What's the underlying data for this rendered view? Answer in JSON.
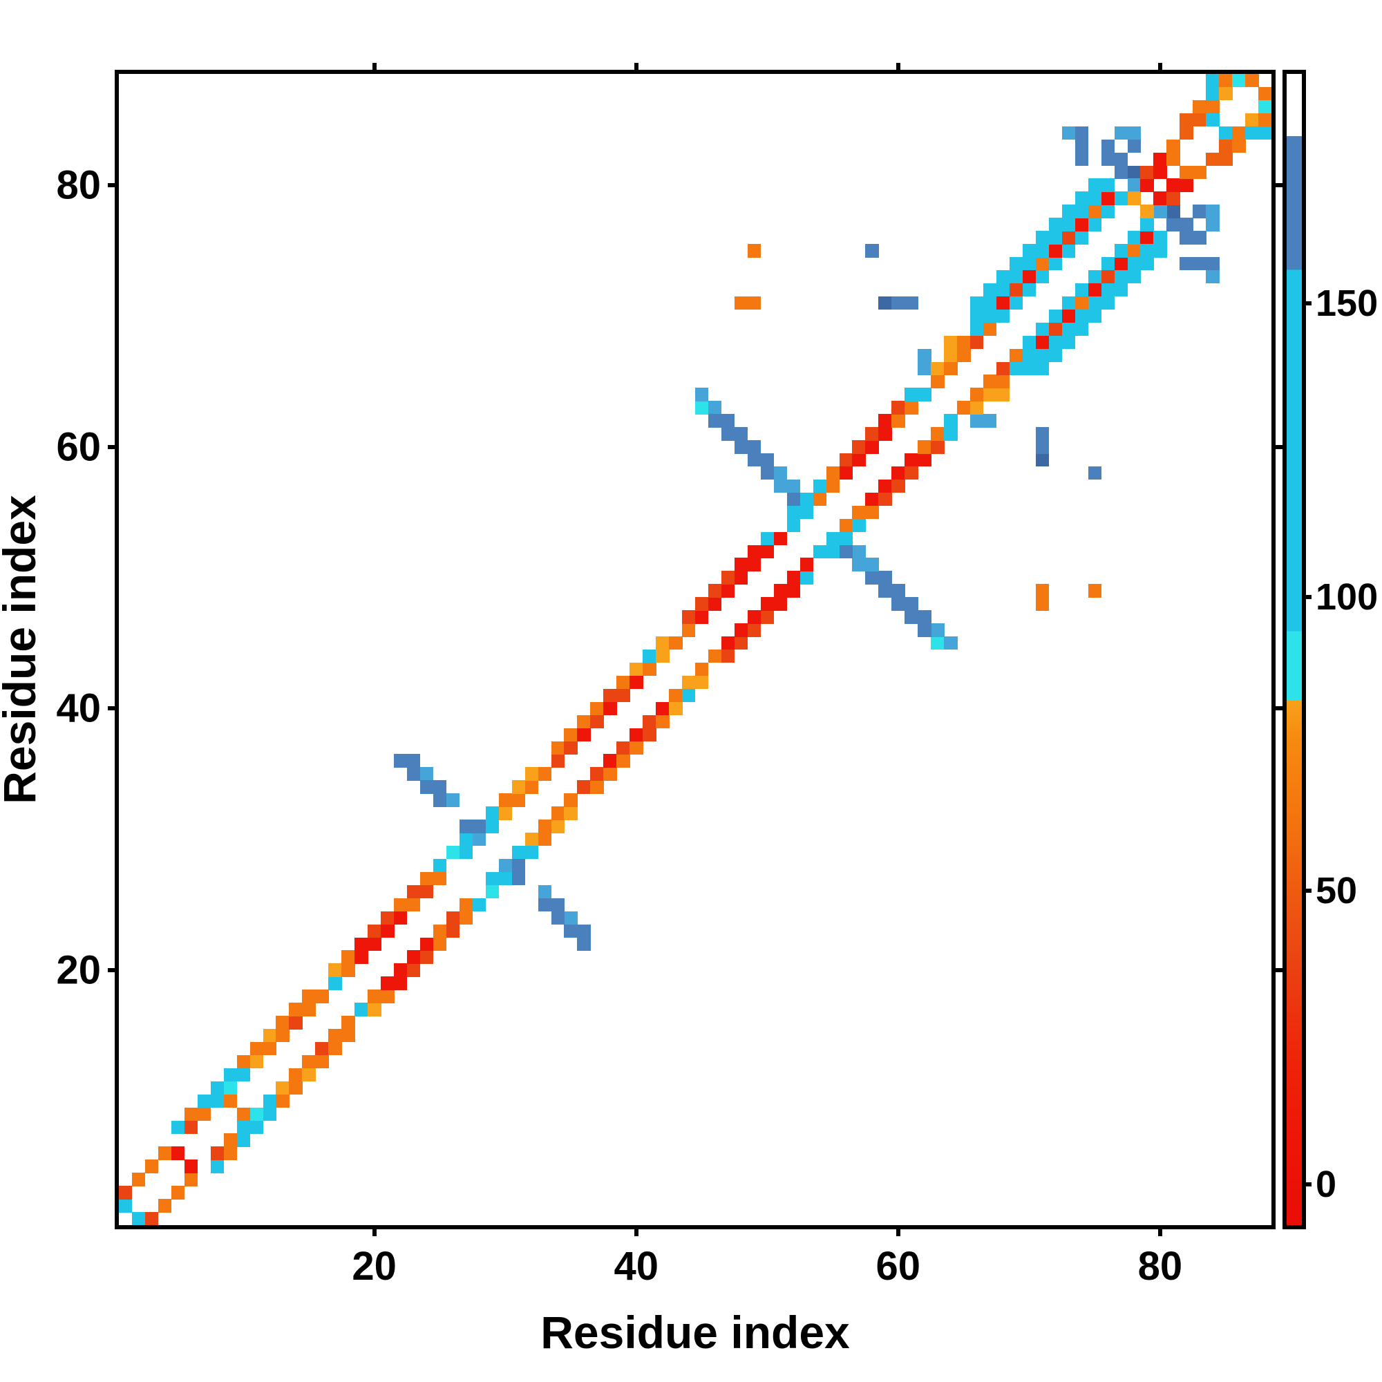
{
  "chart_data": {
    "type": "heatmap",
    "title": "",
    "xlabel": "Residue index",
    "ylabel": "Residue index",
    "x_range": [
      1,
      88
    ],
    "y_range": [
      1,
      88
    ],
    "x_ticks": [
      20,
      40,
      60,
      80
    ],
    "y_ticks": [
      20,
      40,
      60,
      80
    ],
    "grid": false,
    "symmetric": true,
    "background_value_color": "#ffffff",
    "colorbar": {
      "position": "right",
      "ticks": [
        0,
        50,
        100,
        150
      ],
      "value_range": [
        -7,
        189
      ],
      "gradient_stops": [
        {
          "pos": 0.0,
          "color": "#ffffff"
        },
        {
          "pos": 0.054,
          "color": "#ffffff"
        },
        {
          "pos": 0.0541,
          "color": "#4a81bc"
        },
        {
          "pos": 0.17,
          "color": "#4a81bc"
        },
        {
          "pos": 0.1701,
          "color": "#1fc4e6"
        },
        {
          "pos": 0.484,
          "color": "#1fc4e6"
        },
        {
          "pos": 0.4841,
          "color": "#2ee2ea"
        },
        {
          "pos": 0.544,
          "color": "#2ee2ea"
        },
        {
          "pos": 0.5441,
          "color": "#f9a11b"
        },
        {
          "pos": 0.58,
          "color": "#f6890f"
        },
        {
          "pos": 0.64,
          "color": "#f4770f"
        },
        {
          "pos": 0.7,
          "color": "#ef5f10"
        },
        {
          "pos": 0.77,
          "color": "#ea4412"
        },
        {
          "pos": 0.85,
          "color": "#ee2609"
        },
        {
          "pos": 0.92,
          "color": "#ee1608"
        },
        {
          "pos": 1.0,
          "color": "#e90d06"
        }
      ]
    },
    "palette": {
      "R": {
        "value": 3,
        "color": "#ee1608"
      },
      "RO": {
        "value": 25,
        "color": "#ea4412"
      },
      "DO": {
        "value": 38,
        "color": "#ef5f10"
      },
      "O": {
        "value": 48,
        "color": "#f4770f"
      },
      "A": {
        "value": 72,
        "color": "#f9a11b"
      },
      "Cb": {
        "value": 88,
        "color": "#2ee2ea"
      },
      "C": {
        "value": 110,
        "color": "#1fc4e6"
      },
      "LB": {
        "value": 148,
        "color": "#45a5d8"
      },
      "SB": {
        "value": 163,
        "color": "#4a81bc"
      },
      "SBd": {
        "value": 172,
        "color": "#3c69a4"
      }
    },
    "cells": [
      [
        1,
        2,
        "C"
      ],
      [
        1,
        3,
        "RO"
      ],
      [
        2,
        4,
        "O"
      ],
      [
        3,
        5,
        "O"
      ],
      [
        4,
        6,
        "O"
      ],
      [
        5,
        6,
        "R"
      ],
      [
        5,
        8,
        "C"
      ],
      [
        6,
        8,
        "RO"
      ],
      [
        6,
        9,
        "O"
      ],
      [
        7,
        9,
        "O"
      ],
      [
        7,
        10,
        "C"
      ],
      [
        8,
        10,
        "C"
      ],
      [
        8,
        11,
        "C"
      ],
      [
        9,
        10,
        "O"
      ],
      [
        9,
        11,
        "Cb"
      ],
      [
        9,
        12,
        "C"
      ],
      [
        10,
        12,
        "C"
      ],
      [
        10,
        13,
        "O"
      ],
      [
        11,
        13,
        "A"
      ],
      [
        11,
        14,
        "O"
      ],
      [
        12,
        14,
        "O"
      ],
      [
        12,
        15,
        "A"
      ],
      [
        13,
        15,
        "O"
      ],
      [
        13,
        16,
        "O"
      ],
      [
        14,
        16,
        "RO"
      ],
      [
        14,
        17,
        "O"
      ],
      [
        15,
        17,
        "O"
      ],
      [
        15,
        18,
        "O"
      ],
      [
        16,
        18,
        "O"
      ],
      [
        17,
        19,
        "C"
      ],
      [
        17,
        20,
        "A"
      ],
      [
        18,
        20,
        "O"
      ],
      [
        18,
        21,
        "O"
      ],
      [
        19,
        21,
        "R"
      ],
      [
        19,
        22,
        "R"
      ],
      [
        20,
        22,
        "R"
      ],
      [
        20,
        23,
        "RO"
      ],
      [
        21,
        23,
        "R"
      ],
      [
        21,
        24,
        "RO"
      ],
      [
        22,
        24,
        "R"
      ],
      [
        22,
        25,
        "O"
      ],
      [
        23,
        25,
        "O"
      ],
      [
        23,
        26,
        "RO"
      ],
      [
        24,
        26,
        "RO"
      ],
      [
        24,
        27,
        "O"
      ],
      [
        25,
        27,
        "O"
      ],
      [
        25,
        28,
        "C"
      ],
      [
        26,
        29,
        "Cb"
      ],
      [
        27,
        29,
        "C"
      ],
      [
        27,
        30,
        "C"
      ],
      [
        28,
        30,
        "LB"
      ],
      [
        27,
        31,
        "SB"
      ],
      [
        28,
        31,
        "SB"
      ],
      [
        29,
        31,
        "C"
      ],
      [
        29,
        32,
        "C"
      ],
      [
        30,
        32,
        "A"
      ],
      [
        30,
        33,
        "O"
      ],
      [
        31,
        33,
        "O"
      ],
      [
        31,
        34,
        "A"
      ],
      [
        22,
        36,
        "SB"
      ],
      [
        23,
        36,
        "SB"
      ],
      [
        23,
        35,
        "SB"
      ],
      [
        24,
        35,
        "LB"
      ],
      [
        24,
        34,
        "SB"
      ],
      [
        25,
        34,
        "SB"
      ],
      [
        25,
        33,
        "SB"
      ],
      [
        26,
        33,
        "LB"
      ],
      [
        32,
        34,
        "O"
      ],
      [
        32,
        35,
        "A"
      ],
      [
        33,
        35,
        "O"
      ],
      [
        34,
        36,
        "RO"
      ],
      [
        34,
        37,
        "O"
      ],
      [
        35,
        37,
        "RO"
      ],
      [
        35,
        38,
        "O"
      ],
      [
        36,
        38,
        "R"
      ],
      [
        36,
        39,
        "O"
      ],
      [
        37,
        39,
        "RO"
      ],
      [
        37,
        40,
        "O"
      ],
      [
        38,
        40,
        "R"
      ],
      [
        38,
        41,
        "RO"
      ],
      [
        39,
        41,
        "RO"
      ],
      [
        39,
        42,
        "O"
      ],
      [
        40,
        42,
        "R"
      ],
      [
        40,
        43,
        "A"
      ],
      [
        41,
        43,
        "O"
      ],
      [
        41,
        44,
        "C"
      ],
      [
        42,
        44,
        "A"
      ],
      [
        42,
        45,
        "A"
      ],
      [
        43,
        45,
        "O"
      ],
      [
        44,
        46,
        "O"
      ],
      [
        44,
        47,
        "RO"
      ],
      [
        45,
        47,
        "R"
      ],
      [
        45,
        48,
        "RO"
      ],
      [
        46,
        48,
        "R"
      ],
      [
        46,
        49,
        "RO"
      ],
      [
        47,
        49,
        "R"
      ],
      [
        47,
        50,
        "RO"
      ],
      [
        48,
        50,
        "R"
      ],
      [
        48,
        51,
        "R"
      ],
      [
        49,
        51,
        "R"
      ],
      [
        49,
        52,
        "R"
      ],
      [
        50,
        52,
        "R"
      ],
      [
        50,
        53,
        "C"
      ],
      [
        51,
        53,
        "R"
      ],
      [
        52,
        54,
        "C"
      ],
      [
        52,
        55,
        "C"
      ],
      [
        53,
        55,
        "C"
      ],
      [
        53,
        56,
        "C"
      ],
      [
        54,
        56,
        "O"
      ],
      [
        54,
        57,
        "C"
      ],
      [
        55,
        57,
        "O"
      ],
      [
        55,
        58,
        "O"
      ],
      [
        45,
        63,
        "Cb"
      ],
      [
        46,
        63,
        "LB"
      ],
      [
        45,
        64,
        "LB"
      ],
      [
        46,
        62,
        "SB"
      ],
      [
        47,
        62,
        "SB"
      ],
      [
        47,
        61,
        "SB"
      ],
      [
        48,
        61,
        "SB"
      ],
      [
        48,
        60,
        "SB"
      ],
      [
        49,
        60,
        "SB"
      ],
      [
        49,
        59,
        "SB"
      ],
      [
        50,
        59,
        "SB"
      ],
      [
        50,
        58,
        "SB"
      ],
      [
        51,
        58,
        "LB"
      ],
      [
        51,
        57,
        "LB"
      ],
      [
        52,
        57,
        "LB"
      ],
      [
        52,
        56,
        "SB"
      ],
      [
        56,
        58,
        "R"
      ],
      [
        56,
        59,
        "RO"
      ],
      [
        57,
        59,
        "R"
      ],
      [
        57,
        60,
        "RO"
      ],
      [
        58,
        60,
        "R"
      ],
      [
        58,
        61,
        "RO"
      ],
      [
        59,
        61,
        "R"
      ],
      [
        59,
        62,
        "R"
      ],
      [
        60,
        62,
        "O"
      ],
      [
        60,
        63,
        "RO"
      ],
      [
        61,
        63,
        "O"
      ],
      [
        61,
        64,
        "C"
      ],
      [
        62,
        64,
        "C"
      ],
      [
        62,
        66,
        "LB"
      ],
      [
        62,
        67,
        "LB"
      ],
      [
        63,
        65,
        "O"
      ],
      [
        63,
        66,
        "A"
      ],
      [
        64,
        66,
        "O"
      ],
      [
        64,
        67,
        "A"
      ],
      [
        65,
        67,
        "O"
      ],
      [
        64,
        68,
        "A"
      ],
      [
        65,
        68,
        "O"
      ],
      [
        66,
        68,
        "RO"
      ],
      [
        66,
        69,
        "C"
      ],
      [
        67,
        69,
        "O"
      ],
      [
        67,
        70,
        "C"
      ],
      [
        68,
        70,
        "C"
      ],
      [
        68,
        71,
        "R"
      ],
      [
        69,
        71,
        "C"
      ],
      [
        69,
        72,
        "RO"
      ],
      [
        70,
        72,
        "C"
      ],
      [
        70,
        73,
        "R"
      ],
      [
        71,
        73,
        "C"
      ],
      [
        71,
        74,
        "O"
      ],
      [
        72,
        74,
        "C"
      ],
      [
        72,
        75,
        "R"
      ],
      [
        73,
        75,
        "C"
      ],
      [
        73,
        76,
        "RO"
      ],
      [
        74,
        76,
        "C"
      ],
      [
        74,
        77,
        "R"
      ],
      [
        75,
        77,
        "C"
      ],
      [
        75,
        78,
        "O"
      ],
      [
        76,
        78,
        "C"
      ],
      [
        76,
        79,
        "R"
      ],
      [
        77,
        79,
        "C"
      ],
      [
        66,
        70,
        "C"
      ],
      [
        66,
        71,
        "C"
      ],
      [
        67,
        71,
        "C"
      ],
      [
        67,
        72,
        "C"
      ],
      [
        68,
        72,
        "C"
      ],
      [
        68,
        73,
        "C"
      ],
      [
        69,
        73,
        "C"
      ],
      [
        69,
        74,
        "C"
      ],
      [
        70,
        74,
        "C"
      ],
      [
        70,
        75,
        "C"
      ],
      [
        71,
        75,
        "C"
      ],
      [
        71,
        76,
        "C"
      ],
      [
        72,
        76,
        "C"
      ],
      [
        72,
        77,
        "C"
      ],
      [
        73,
        77,
        "C"
      ],
      [
        73,
        78,
        "C"
      ],
      [
        74,
        78,
        "C"
      ],
      [
        74,
        79,
        "C"
      ],
      [
        75,
        79,
        "C"
      ],
      [
        75,
        80,
        "C"
      ],
      [
        76,
        80,
        "C"
      ],
      [
        73,
        84,
        "LB"
      ],
      [
        74,
        84,
        "SB"
      ],
      [
        74,
        83,
        "SB"
      ],
      [
        74,
        82,
        "SB"
      ],
      [
        76,
        83,
        "SB"
      ],
      [
        77,
        84,
        "LB"
      ],
      [
        76,
        82,
        "SB"
      ],
      [
        77,
        82,
        "SB"
      ],
      [
        77,
        81,
        "SB"
      ],
      [
        78,
        81,
        "SBd"
      ],
      [
        78,
        80,
        "LB"
      ],
      [
        78,
        83,
        "SB"
      ],
      [
        78,
        84,
        "LB"
      ],
      [
        78,
        79,
        "A"
      ],
      [
        79,
        80,
        "R"
      ],
      [
        79,
        81,
        "RO"
      ],
      [
        80,
        81,
        "R"
      ],
      [
        80,
        82,
        "R"
      ],
      [
        81,
        82,
        "O"
      ],
      [
        81,
        83,
        "O"
      ],
      [
        82,
        84,
        "DO"
      ],
      [
        82,
        85,
        "DO"
      ],
      [
        83,
        85,
        "DO"
      ],
      [
        83,
        86,
        "O"
      ],
      [
        84,
        85,
        "C"
      ],
      [
        84,
        86,
        "O"
      ],
      [
        84,
        87,
        "C"
      ],
      [
        84,
        88,
        "C"
      ],
      [
        85,
        87,
        "A"
      ],
      [
        85,
        88,
        "O"
      ],
      [
        86,
        88,
        "Cb"
      ],
      [
        87,
        88,
        "O"
      ],
      [
        48,
        71,
        "O"
      ],
      [
        49,
        71,
        "O"
      ],
      [
        49,
        75,
        "O"
      ],
      [
        58,
        75,
        "SB"
      ],
      [
        59,
        71,
        "SBd"
      ],
      [
        60,
        71,
        "SB"
      ],
      [
        61,
        71,
        "SB"
      ]
    ]
  }
}
